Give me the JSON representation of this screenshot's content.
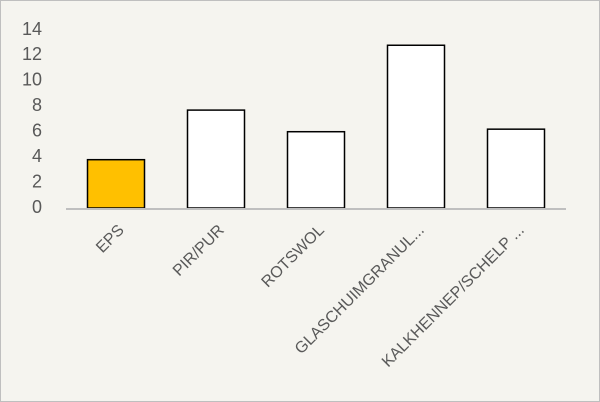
{
  "chart_data": {
    "type": "bar",
    "categories": [
      "EPS",
      "PIR/PUR",
      "ROTSWOL",
      "GLASCHUIMGRANUL...",
      "KALKHENNEP/SCHELP ..."
    ],
    "values": [
      3.8,
      7.7,
      6.0,
      12.8,
      6.2
    ],
    "colors": [
      "#ffc000",
      "#ffffff",
      "#ffffff",
      "#ffffff",
      "#ffffff"
    ],
    "ylim": [
      0,
      14
    ],
    "yticks": [
      0,
      2,
      4,
      6,
      8,
      10,
      12,
      14
    ],
    "grid": false
  }
}
